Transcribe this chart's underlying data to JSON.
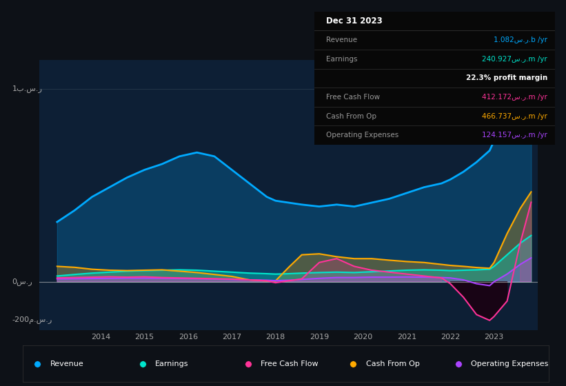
{
  "background_color": "#0d1117",
  "plot_bg_color": "#0d1f35",
  "colors": {
    "revenue": "#00aaff",
    "earnings": "#00e5cc",
    "free_cash_flow": "#ff3399",
    "cash_from_op": "#ffaa00",
    "operating_expenses": "#aa44ff"
  },
  "info_box": {
    "date": "Dec 31 2023",
    "rows": [
      {
        "label": "Revenue",
        "value": "1.082س.ر.b /yr",
        "color": "#00aaff"
      },
      {
        "label": "Earnings",
        "value": "240.927س.ر.m /yr",
        "color": "#00e5cc"
      },
      {
        "label": "",
        "value": "22.3% profit margin",
        "color": "#ffffff"
      },
      {
        "label": "Free Cash Flow",
        "value": "412.172س.ر.m /yr",
        "color": "#ff3399"
      },
      {
        "label": "Cash From Op",
        "value": "466.737س.ر.m /yr",
        "color": "#ffaa00"
      },
      {
        "label": "Operating Expenses",
        "value": "124.157س.ر.m /yr",
        "color": "#aa44ff"
      }
    ]
  },
  "years": [
    2013.0,
    2013.4,
    2013.8,
    2014.2,
    2014.6,
    2015.0,
    2015.4,
    2015.8,
    2016.2,
    2016.6,
    2017.0,
    2017.4,
    2017.8,
    2018.0,
    2018.3,
    2018.6,
    2019.0,
    2019.4,
    2019.8,
    2020.2,
    2020.6,
    2021.0,
    2021.4,
    2021.8,
    2022.0,
    2022.3,
    2022.6,
    2022.9,
    2023.0,
    2023.3,
    2023.6,
    2023.85
  ],
  "revenue": [
    310,
    370,
    440,
    490,
    540,
    580,
    610,
    650,
    670,
    650,
    580,
    510,
    440,
    420,
    410,
    400,
    390,
    400,
    390,
    410,
    430,
    460,
    490,
    510,
    530,
    570,
    620,
    680,
    730,
    850,
    970,
    1082
  ],
  "earnings": [
    30,
    38,
    45,
    50,
    55,
    58,
    60,
    62,
    60,
    55,
    50,
    45,
    42,
    40,
    42,
    45,
    48,
    50,
    48,
    52,
    56,
    60,
    62,
    60,
    58,
    60,
    62,
    65,
    80,
    140,
    200,
    240
  ],
  "free_cash_flow": [
    20,
    22,
    24,
    26,
    24,
    26,
    22,
    20,
    18,
    16,
    14,
    10,
    5,
    -5,
    5,
    15,
    100,
    120,
    80,
    60,
    50,
    40,
    30,
    20,
    -10,
    -80,
    -170,
    -200,
    -180,
    -100,
    200,
    412
  ],
  "cash_from_op": [
    80,
    75,
    65,
    60,
    58,
    60,
    62,
    55,
    48,
    38,
    28,
    10,
    5,
    5,
    75,
    140,
    145,
    130,
    120,
    120,
    112,
    105,
    100,
    90,
    85,
    80,
    74,
    70,
    100,
    250,
    380,
    466
  ],
  "operating_expenses": [
    15,
    16,
    17,
    18,
    19,
    19,
    18,
    17,
    16,
    14,
    12,
    10,
    8,
    6,
    8,
    12,
    18,
    22,
    22,
    24,
    24,
    25,
    24,
    22,
    20,
    10,
    -10,
    -20,
    0,
    40,
    90,
    124
  ],
  "xmin": 2012.6,
  "xmax": 2024.0,
  "ymin": -250,
  "ymax": 1150,
  "zero_y": 0,
  "top_gridline_y": 1000,
  "xticks": [
    2014,
    2015,
    2016,
    2017,
    2018,
    2019,
    2020,
    2021,
    2022,
    2023
  ],
  "ylabel_top": "1ب.س.ر",
  "ylabel_zero": "0س.ر",
  "ylabel_bot": "-200م.س.ر"
}
